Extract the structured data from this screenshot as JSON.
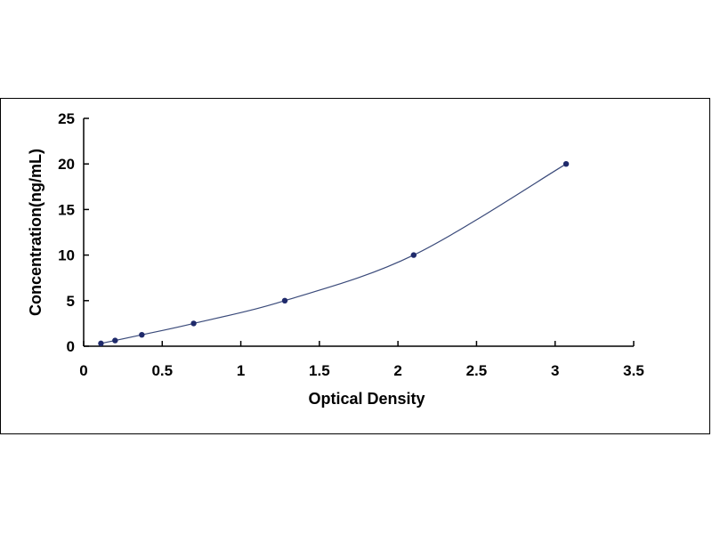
{
  "chart_data": {
    "type": "scatter",
    "title": "",
    "xlabel": "Optical Density",
    "ylabel": "Concentration(ng/mL)",
    "xlim": [
      0,
      3.5
    ],
    "ylim": [
      0,
      25
    ],
    "x_ticks": [
      0,
      0.5,
      1,
      1.5,
      2,
      2.5,
      3,
      3.5
    ],
    "y_ticks": [
      0,
      5,
      10,
      15,
      20,
      25
    ],
    "x_tick_labels": [
      "0",
      "0.5",
      "1",
      "1.5",
      "2",
      "2.5",
      "3",
      "3.5"
    ],
    "y_tick_labels": [
      "0",
      "5",
      "10",
      "15",
      "20",
      "25"
    ],
    "grid": false,
    "legend": "none",
    "marker_color": "#1f2a6b",
    "line_color": "#3a4a7a",
    "series": [
      {
        "x": [
          0.11,
          0.2,
          0.37,
          0.7,
          1.28,
          2.1,
          3.07
        ],
        "y": [
          0.31,
          0.625,
          1.25,
          2.5,
          5,
          10,
          20
        ],
        "fit": "smooth-curve"
      }
    ]
  }
}
